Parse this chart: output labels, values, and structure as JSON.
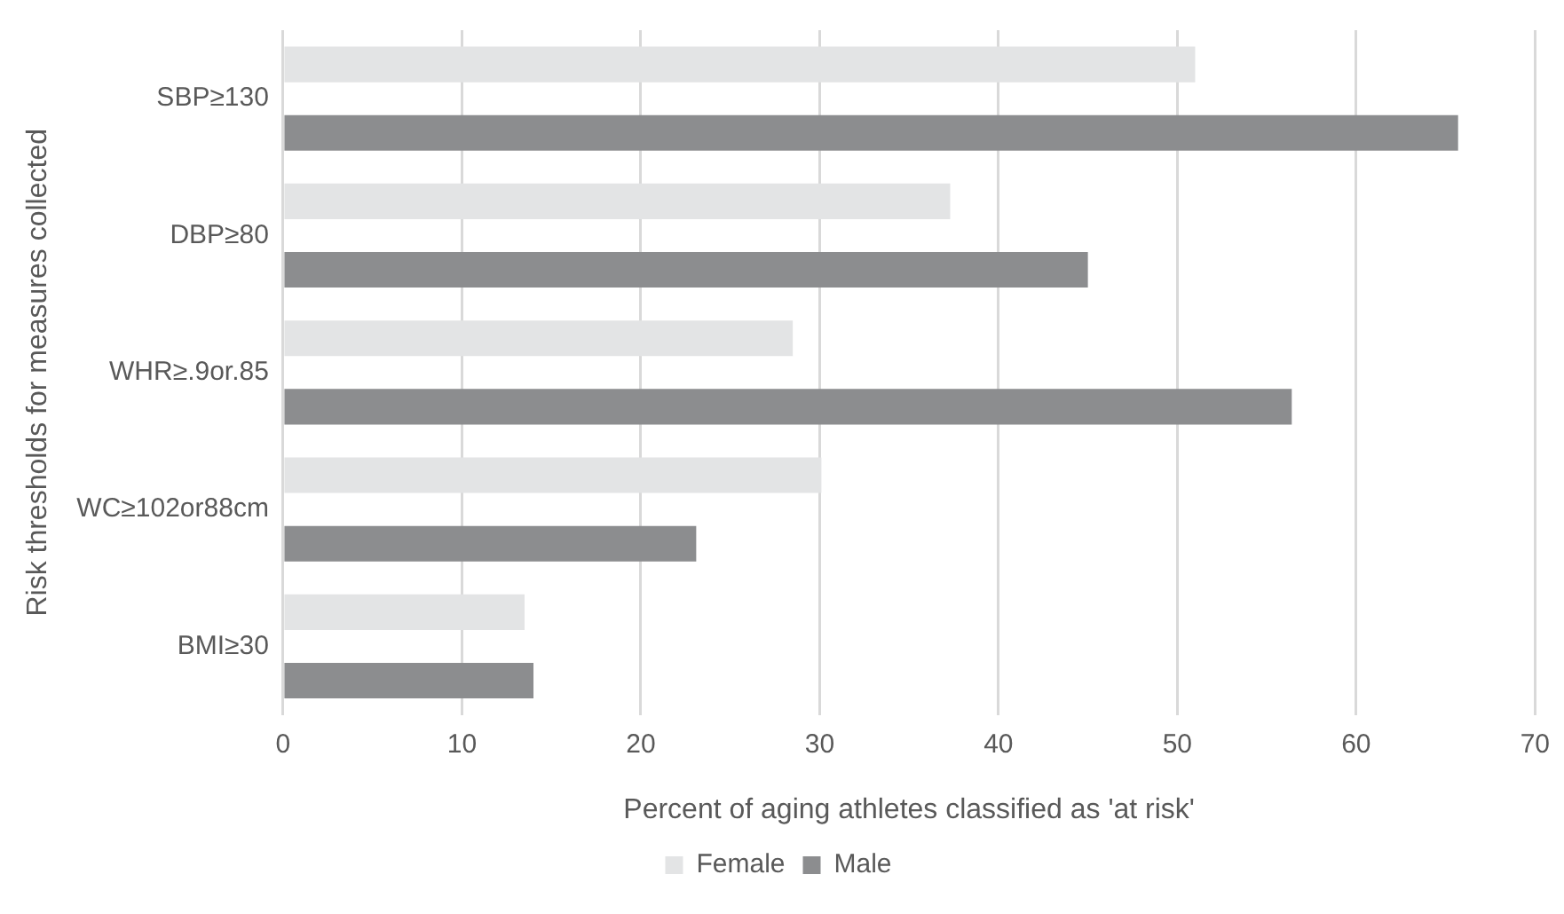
{
  "chart_data": {
    "type": "bar",
    "orientation": "horizontal",
    "xlabel": "Percent of aging athletes classified as 'at risk'",
    "ylabel": "Risk thresholds for measures collected",
    "categories": [
      "SBP≥130",
      "DBP≥80",
      "WHR≥.9or.85",
      "WC≥102or88cm",
      "BMI≥30"
    ],
    "series": [
      {
        "name": "Female",
        "color": "#e3e4e5",
        "values": [
          51.0,
          37.3,
          28.5,
          30.1,
          13.5
        ]
      },
      {
        "name": "Male",
        "color": "#8c8d8f",
        "values": [
          65.7,
          45.0,
          56.4,
          23.1,
          14.0
        ]
      }
    ],
    "xlim": [
      0,
      70
    ],
    "xticks": [
      0,
      10,
      20,
      30,
      40,
      50,
      60,
      70
    ],
    "grid": "x",
    "legend": "bottom"
  }
}
